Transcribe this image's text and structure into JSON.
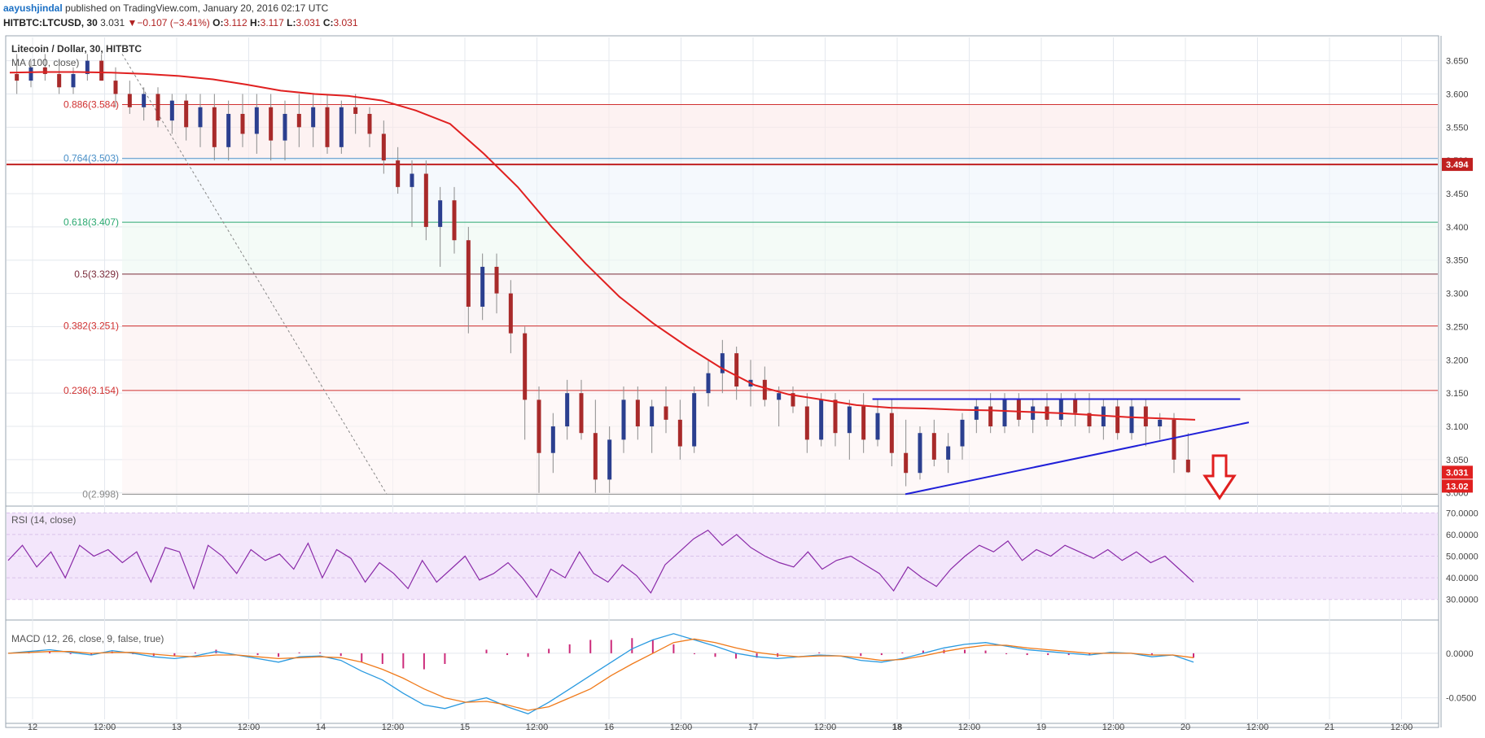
{
  "header": {
    "author": "aayushjindal",
    "publish_text": " published on TradingView.com, January 20, 2016 02:17 UTC",
    "symbol": "HITBTC:LTCUSD, 30",
    "last": "3.031",
    "change_arrow": "▼",
    "change": "−0.107 (−3.41%)",
    "open_label": "O:",
    "open": "3.112",
    "high_label": "H:",
    "high": "3.117",
    "low_label": "L:",
    "low": "3.031",
    "close_label": "C:",
    "close": "3.031"
  },
  "colors": {
    "candle_up": "#2b3f8f",
    "candle_down": "#a82a2a",
    "ma_line": "#e02020",
    "trend_line": "#2020d8",
    "rsi_line": "#8a2aa8",
    "macd_line": "#2a9ae0",
    "signal_line": "#f07a1a",
    "histogram": "#cc2a7a",
    "price_badge": "#e02020"
  },
  "chart_data": [
    {
      "type": "candlestick",
      "title": "Litecoin / Dollar, 30, HITBTC",
      "indicator": "MA (100, close)",
      "x_ticks": [
        "12",
        "12:00",
        "13",
        "12:00",
        "14",
        "12:00",
        "15",
        "12:00",
        "16",
        "12:00",
        "17",
        "12:00",
        "18",
        "12:00",
        "19",
        "12:00",
        "20",
        "12:00",
        "21",
        "12:00"
      ],
      "x_tick_bold": [
        false,
        false,
        false,
        false,
        false,
        false,
        false,
        false,
        false,
        false,
        false,
        false,
        true,
        false,
        false,
        false,
        false,
        false,
        false,
        false
      ],
      "y_ticks": [
        "3.650",
        "3.600",
        "3.550",
        "3.500",
        "3.450",
        "3.400",
        "3.350",
        "3.300",
        "3.250",
        "3.200",
        "3.150",
        "3.100",
        "3.050",
        "3.000"
      ],
      "ylim": [
        2.985,
        3.685
      ],
      "last_price": "3.031",
      "volume_badge": "13.02",
      "level_badge": "3.494",
      "fib_levels": [
        {
          "label": "0.886(3.584)",
          "value": 3.584,
          "color": "#d03030"
        },
        {
          "label": "0.764(3.503)",
          "value": 3.503,
          "color": "#4a90c8"
        },
        {
          "label": "0.618(3.407)",
          "value": 3.407,
          "color": "#2aa870"
        },
        {
          "label": "0.5(3.329)",
          "value": 3.329,
          "color": "#7a2a3a"
        },
        {
          "label": "0.382(3.251)",
          "value": 3.251,
          "color": "#d03030"
        },
        {
          "label": "0.236(3.154)",
          "value": 3.154,
          "color": "#d03030"
        },
        {
          "label": "0(2.998)",
          "value": 2.998,
          "color": "#888888"
        }
      ],
      "horizontal_level": 3.494,
      "ohlc": [
        [
          3.63,
          3.66,
          3.6,
          3.62
        ],
        [
          3.62,
          3.65,
          3.61,
          3.64
        ],
        [
          3.64,
          3.66,
          3.62,
          3.63
        ],
        [
          3.63,
          3.65,
          3.6,
          3.61
        ],
        [
          3.61,
          3.64,
          3.6,
          3.63
        ],
        [
          3.63,
          3.66,
          3.62,
          3.65
        ],
        [
          3.65,
          3.66,
          3.62,
          3.62
        ],
        [
          3.62,
          3.64,
          3.58,
          3.6
        ],
        [
          3.6,
          3.62,
          3.57,
          3.58
        ],
        [
          3.58,
          3.61,
          3.56,
          3.6
        ],
        [
          3.6,
          3.61,
          3.55,
          3.56
        ],
        [
          3.56,
          3.6,
          3.54,
          3.59
        ],
        [
          3.59,
          3.6,
          3.53,
          3.55
        ],
        [
          3.55,
          3.6,
          3.52,
          3.58
        ],
        [
          3.58,
          3.6,
          3.5,
          3.52
        ],
        [
          3.52,
          3.59,
          3.5,
          3.57
        ],
        [
          3.57,
          3.6,
          3.52,
          3.54
        ],
        [
          3.54,
          3.6,
          3.51,
          3.58
        ],
        [
          3.58,
          3.6,
          3.5,
          3.53
        ],
        [
          3.53,
          3.59,
          3.5,
          3.57
        ],
        [
          3.57,
          3.6,
          3.52,
          3.55
        ],
        [
          3.55,
          3.6,
          3.52,
          3.58
        ],
        [
          3.58,
          3.6,
          3.51,
          3.52
        ],
        [
          3.52,
          3.59,
          3.51,
          3.58
        ],
        [
          3.58,
          3.6,
          3.54,
          3.57
        ],
        [
          3.57,
          3.58,
          3.52,
          3.54
        ],
        [
          3.54,
          3.56,
          3.48,
          3.5
        ],
        [
          3.5,
          3.52,
          3.45,
          3.46
        ],
        [
          3.46,
          3.5,
          3.4,
          3.48
        ],
        [
          3.48,
          3.5,
          3.38,
          3.4
        ],
        [
          3.4,
          3.46,
          3.34,
          3.44
        ],
        [
          3.44,
          3.46,
          3.36,
          3.38
        ],
        [
          3.38,
          3.4,
          3.24,
          3.28
        ],
        [
          3.28,
          3.36,
          3.26,
          3.34
        ],
        [
          3.34,
          3.36,
          3.27,
          3.3
        ],
        [
          3.3,
          3.32,
          3.21,
          3.24
        ],
        [
          3.24,
          3.25,
          3.08,
          3.14
        ],
        [
          3.14,
          3.16,
          3.0,
          3.06
        ],
        [
          3.06,
          3.12,
          3.03,
          3.1
        ],
        [
          3.1,
          3.17,
          3.08,
          3.15
        ],
        [
          3.15,
          3.17,
          3.08,
          3.09
        ],
        [
          3.09,
          3.14,
          3.0,
          3.02
        ],
        [
          3.02,
          3.1,
          3.0,
          3.08
        ],
        [
          3.08,
          3.16,
          3.06,
          3.14
        ],
        [
          3.14,
          3.16,
          3.08,
          3.1
        ],
        [
          3.1,
          3.14,
          3.06,
          3.13
        ],
        [
          3.13,
          3.16,
          3.09,
          3.11
        ],
        [
          3.11,
          3.14,
          3.05,
          3.07
        ],
        [
          3.07,
          3.16,
          3.06,
          3.15
        ],
        [
          3.15,
          3.2,
          3.13,
          3.18
        ],
        [
          3.18,
          3.23,
          3.15,
          3.21
        ],
        [
          3.21,
          3.22,
          3.14,
          3.16
        ],
        [
          3.16,
          3.2,
          3.13,
          3.17
        ],
        [
          3.17,
          3.19,
          3.13,
          3.14
        ],
        [
          3.14,
          3.16,
          3.1,
          3.15
        ],
        [
          3.15,
          3.16,
          3.12,
          3.13
        ],
        [
          3.13,
          3.15,
          3.06,
          3.08
        ],
        [
          3.08,
          3.15,
          3.07,
          3.14
        ],
        [
          3.14,
          3.15,
          3.07,
          3.09
        ],
        [
          3.09,
          3.14,
          3.05,
          3.13
        ],
        [
          3.13,
          3.15,
          3.06,
          3.08
        ],
        [
          3.08,
          3.14,
          3.07,
          3.12
        ],
        [
          3.12,
          3.14,
          3.04,
          3.06
        ],
        [
          3.06,
          3.11,
          3.01,
          3.03
        ],
        [
          3.03,
          3.1,
          3.02,
          3.09
        ],
        [
          3.09,
          3.11,
          3.04,
          3.05
        ],
        [
          3.05,
          3.09,
          3.03,
          3.07
        ],
        [
          3.07,
          3.12,
          3.05,
          3.11
        ],
        [
          3.11,
          3.14,
          3.09,
          3.13
        ],
        [
          3.13,
          3.15,
          3.09,
          3.1
        ],
        [
          3.1,
          3.15,
          3.09,
          3.14
        ],
        [
          3.14,
          3.15,
          3.1,
          3.11
        ],
        [
          3.11,
          3.14,
          3.09,
          3.13
        ],
        [
          3.13,
          3.15,
          3.1,
          3.11
        ],
        [
          3.11,
          3.15,
          3.1,
          3.14
        ],
        [
          3.14,
          3.15,
          3.1,
          3.12
        ],
        [
          3.12,
          3.15,
          3.09,
          3.1
        ],
        [
          3.1,
          3.14,
          3.08,
          3.13
        ],
        [
          3.13,
          3.14,
          3.08,
          3.09
        ],
        [
          3.09,
          3.14,
          3.08,
          3.13
        ],
        [
          3.13,
          3.14,
          3.07,
          3.1
        ],
        [
          3.1,
          3.12,
          3.08,
          3.11
        ],
        [
          3.11,
          3.12,
          3.03,
          3.05
        ],
        [
          3.05,
          3.09,
          3.03,
          3.031
        ]
      ],
      "ma100": [
        3.632,
        3.633,
        3.633,
        3.632,
        3.63,
        3.627,
        3.622,
        3.614,
        3.605,
        3.6,
        3.597,
        3.59,
        3.575,
        3.555,
        3.51,
        3.46,
        3.4,
        3.345,
        3.295,
        3.255,
        3.22,
        3.188,
        3.162,
        3.148,
        3.14,
        3.132,
        3.128,
        3.127,
        3.125,
        3.124,
        3.122,
        3.12,
        3.117,
        3.114,
        3.112,
        3.11
      ],
      "trendlines": [
        {
          "name": "resistance",
          "x0": 0.605,
          "y0": 3.141,
          "x1": 0.862,
          "y1": 3.141
        },
        {
          "name": "support",
          "x0": 0.628,
          "y0": 2.998,
          "x1": 0.868,
          "y1": 3.106
        }
      ]
    },
    {
      "type": "line",
      "title": "RSI (14, close)",
      "y_ticks": [
        "70.0000",
        "60.0000",
        "50.0000",
        "40.0000",
        "30.0000"
      ],
      "ylim": [
        25,
        72
      ],
      "band": [
        30,
        70
      ],
      "values": [
        48,
        55,
        45,
        52,
        40,
        55,
        50,
        53,
        47,
        52,
        38,
        54,
        52,
        35,
        55,
        50,
        42,
        53,
        48,
        51,
        44,
        56,
        40,
        53,
        49,
        38,
        47,
        42,
        35,
        48,
        38,
        44,
        50,
        39,
        42,
        47,
        40,
        31,
        44,
        40,
        52,
        42,
        38,
        46,
        41,
        33,
        46,
        52,
        58,
        62,
        55,
        60,
        54,
        50,
        47,
        45,
        52,
        44,
        48,
        50,
        46,
        42,
        34,
        45,
        40,
        36,
        44,
        50,
        55,
        52,
        57,
        48,
        53,
        50,
        55,
        52,
        49,
        53,
        48,
        52,
        47,
        50,
        44,
        38
      ]
    },
    {
      "type": "line",
      "title": "MACD (12, 26, close, 9, false, true)",
      "y_ticks": [
        "0.0000",
        "-0.0500"
      ],
      "ylim": [
        -0.075,
        0.03
      ],
      "macd": [
        0.0,
        0.002,
        0.004,
        0.001,
        -0.002,
        0.003,
        0.0,
        -0.004,
        -0.006,
        -0.003,
        0.002,
        -0.002,
        -0.006,
        -0.01,
        -0.004,
        -0.003,
        -0.008,
        -0.02,
        -0.03,
        -0.045,
        -0.058,
        -0.062,
        -0.055,
        -0.05,
        -0.06,
        -0.068,
        -0.055,
        -0.04,
        -0.025,
        -0.01,
        0.005,
        0.015,
        0.022,
        0.015,
        0.008,
        0.0,
        -0.004,
        -0.006,
        -0.004,
        -0.002,
        -0.003,
        -0.008,
        -0.01,
        -0.006,
        0.0,
        0.006,
        0.01,
        0.012,
        0.008,
        0.004,
        0.002,
        0.0,
        -0.002,
        0.001,
        0.0,
        -0.004,
        -0.002,
        -0.01
      ],
      "signal": [
        0.0,
        0.001,
        0.002,
        0.002,
        0.0,
        0.001,
        0.001,
        -0.001,
        -0.003,
        -0.004,
        -0.002,
        -0.002,
        -0.004,
        -0.006,
        -0.005,
        -0.004,
        -0.005,
        -0.01,
        -0.018,
        -0.028,
        -0.04,
        -0.05,
        -0.055,
        -0.054,
        -0.058,
        -0.064,
        -0.06,
        -0.05,
        -0.04,
        -0.025,
        -0.012,
        0.0,
        0.012,
        0.016,
        0.012,
        0.006,
        0.001,
        -0.002,
        -0.004,
        -0.003,
        -0.003,
        -0.005,
        -0.008,
        -0.007,
        -0.003,
        0.002,
        0.006,
        0.009,
        0.009,
        0.006,
        0.004,
        0.002,
        0.0,
        0.0,
        0.0,
        -0.002,
        -0.002,
        -0.005
      ]
    }
  ]
}
